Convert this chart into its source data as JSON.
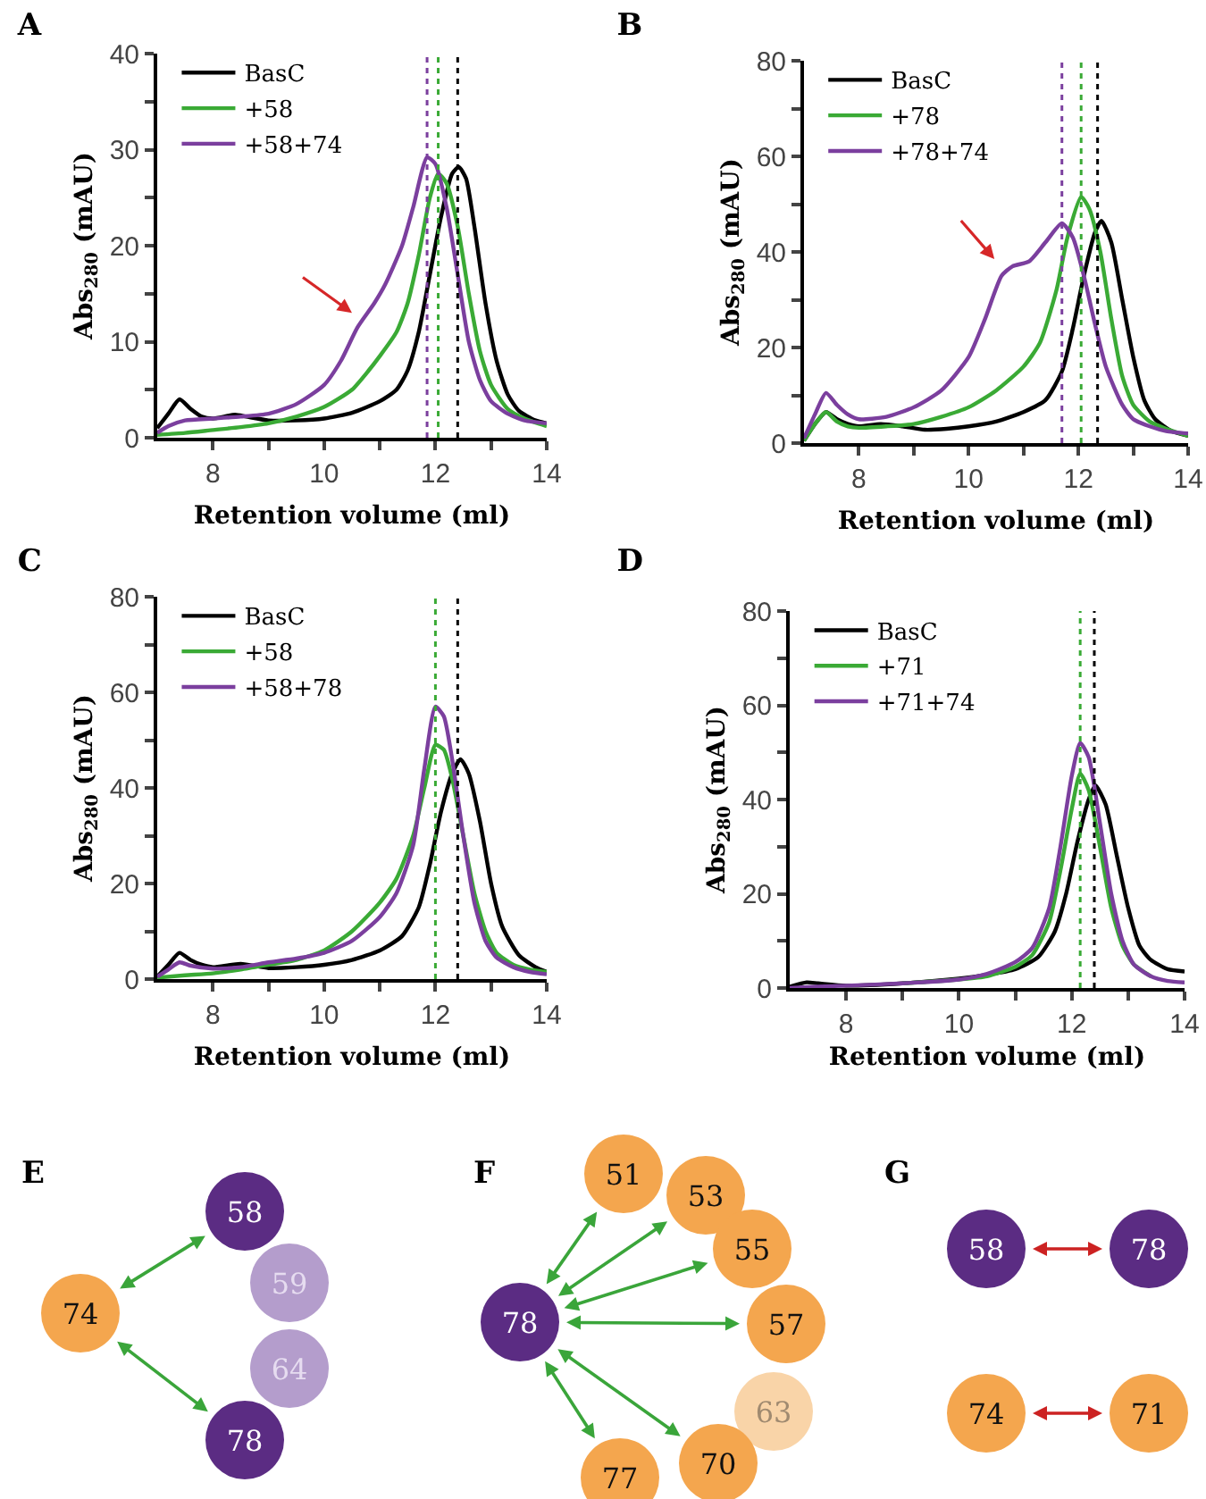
{
  "chart_data": [
    {
      "type": "line",
      "title": "A",
      "xlabel": "Retention volume (ml)",
      "ylabel": "Abs$_{280}$ (mAU)",
      "xlim": [
        7,
        14
      ],
      "xticks": [
        8,
        {
          "value": 9,
          "label": null
        },
        10,
        {
          "value": 11,
          "label": null
        },
        12,
        {
          "value": 13,
          "label": null
        },
        14
      ],
      "ylim": [
        0,
        40
      ],
      "yticks": [
        0,
        {
          "value": 5,
          "label": null
        },
        10,
        {
          "value": 15,
          "label": null
        },
        20,
        {
          "value": 25,
          "label": null
        },
        30,
        {
          "value": 35,
          "label": null
        },
        40
      ],
      "grid": false,
      "legend": "top left",
      "marker": "none",
      "line_style": "solid",
      "ref_lines": [
        {
          "axis": "x",
          "value": 11.85,
          "color": "#7b3f9e",
          "line_style": "dotted"
        },
        {
          "axis": "x",
          "value": 12.05,
          "color": "#3aaa35",
          "line_style": "dotted"
        },
        {
          "axis": "x",
          "value": 12.4,
          "color": "#000000",
          "line_style": "dotted"
        }
      ],
      "series": [
        {
          "name": "BasC",
          "color": "#000000",
          "x": [
            7.0,
            7.2,
            7.4,
            7.6,
            7.8,
            8.0,
            8.4,
            8.6,
            9.0,
            9.5,
            10,
            10.5,
            11,
            11.3,
            11.5,
            11.7,
            11.9,
            12.1,
            12.3,
            12.42,
            12.55,
            12.7,
            12.9,
            13.1,
            13.3,
            13.5,
            13.8,
            14
          ],
          "values": [
            1.0,
            2.5,
            4.0,
            3.0,
            2.2,
            2.0,
            2.4,
            2.2,
            1.8,
            1.8,
            2.0,
            2.6,
            3.8,
            5,
            7,
            11,
            17,
            23,
            27.5,
            28.2,
            27,
            22,
            14,
            8,
            4.5,
            2.8,
            1.8,
            1.5
          ]
        },
        {
          "name": "+58",
          "color": "#3aaa35",
          "x": [
            7.0,
            7.5,
            8,
            8.5,
            9,
            9.5,
            10,
            10.5,
            10.8,
            11,
            11.3,
            11.5,
            11.7,
            11.9,
            12.05,
            12.2,
            12.4,
            12.6,
            12.8,
            13,
            13.3,
            13.6,
            14
          ],
          "values": [
            0.3,
            0.5,
            0.8,
            1.1,
            1.5,
            2.2,
            3.2,
            5,
            7,
            8.5,
            11,
            14,
            19,
            25,
            27.5,
            26.5,
            22,
            15,
            9,
            5.5,
            3,
            2,
            1.2
          ]
        },
        {
          "name": "+58+74",
          "color": "#7b3f9e",
          "x": [
            7,
            7.2,
            7.5,
            8,
            8.5,
            9,
            9.5,
            10,
            10.3,
            10.6,
            10.9,
            11.1,
            11.4,
            11.6,
            11.85,
            12.0,
            12.2,
            12.4,
            12.6,
            12.8,
            13,
            13.3,
            13.6,
            14
          ],
          "values": [
            0.5,
            1.2,
            1.8,
            2.0,
            2.2,
            2.5,
            3.5,
            5.5,
            8,
            11.5,
            14,
            16,
            20,
            24,
            29.2,
            28.5,
            24,
            17,
            10,
            6,
            3.8,
            2.5,
            1.8,
            1.5
          ]
        }
      ]
    },
    {
      "type": "line",
      "title": "B",
      "xlabel": "Retention volume (ml)",
      "ylabel": "Abs$_{280}$ (mAU)",
      "xlim": [
        7,
        14
      ],
      "xticks": [
        8,
        {
          "value": 9,
          "label": null
        },
        10,
        {
          "value": 11,
          "label": null
        },
        12,
        {
          "value": 13,
          "label": null
        },
        14
      ],
      "ylim": [
        0,
        80
      ],
      "yticks": [
        0,
        {
          "value": 10,
          "label": null
        },
        20,
        {
          "value": 30,
          "label": null
        },
        40,
        {
          "value": 50,
          "label": null
        },
        60,
        {
          "value": 70,
          "label": null
        },
        80
      ],
      "grid": false,
      "legend": "top left",
      "marker": "none",
      "line_style": "solid",
      "ref_lines": [
        {
          "axis": "x",
          "value": 11.7,
          "color": "#7b3f9e",
          "line_style": "dotted"
        },
        {
          "axis": "x",
          "value": 12.05,
          "color": "#3aaa35",
          "line_style": "dotted"
        },
        {
          "axis": "x",
          "value": 12.35,
          "color": "#000000",
          "line_style": "dotted"
        }
      ],
      "series": [
        {
          "name": "BasC",
          "color": "#000000",
          "x": [
            7,
            7.2,
            7.4,
            7.6,
            7.8,
            8,
            8.4,
            8.8,
            9.2,
            9.6,
            10,
            10.5,
            11,
            11.4,
            11.7,
            11.9,
            12.1,
            12.3,
            12.42,
            12.6,
            12.8,
            13,
            13.2,
            13.4,
            13.7,
            14
          ],
          "values": [
            0.5,
            4,
            6.5,
            5,
            4,
            3.5,
            4,
            3.5,
            2.8,
            3,
            3.5,
            4.5,
            6.5,
            9,
            15,
            24,
            35,
            44,
            46.5,
            42,
            30,
            18,
            9,
            5,
            2.5,
            1.5
          ]
        },
        {
          "name": "+78",
          "color": "#3aaa35",
          "x": [
            7,
            7.2,
            7.4,
            7.6,
            7.8,
            8,
            8.5,
            9,
            9.5,
            10,
            10.5,
            11,
            11.3,
            11.6,
            11.8,
            12.05,
            12.2,
            12.4,
            12.6,
            12.8,
            13,
            13.3,
            13.6,
            14
          ],
          "values": [
            0.5,
            4,
            6.5,
            4.5,
            3.5,
            3.2,
            3.5,
            4,
            5.5,
            7.5,
            11,
            16,
            21,
            32,
            43,
            51.5,
            49,
            40,
            26,
            14,
            8,
            4.5,
            3,
            1.5
          ]
        },
        {
          "name": "+78+74",
          "color": "#7b3f9e",
          "x": [
            7,
            7.2,
            7.4,
            7.6,
            7.8,
            8,
            8.5,
            9,
            9.5,
            10,
            10.3,
            10.6,
            10.8,
            11.1,
            11.4,
            11.7,
            11.9,
            12.1,
            12.3,
            12.5,
            12.8,
            13,
            13.3,
            13.6,
            14
          ],
          "values": [
            1,
            6,
            10.5,
            8,
            6,
            5,
            5.5,
            7.5,
            11,
            18,
            26,
            35,
            37,
            38,
            42,
            46,
            43,
            35,
            25,
            16,
            8,
            5,
            3.5,
            2.5,
            2
          ]
        }
      ]
    },
    {
      "type": "line",
      "title": "C",
      "xlabel": "Retention volume (ml)",
      "ylabel": "Abs$_{280}$ (mAU)",
      "xlim": [
        7,
        14
      ],
      "xticks": [
        8,
        {
          "value": 9,
          "label": null
        },
        10,
        {
          "value": 11,
          "label": null
        },
        12,
        {
          "value": 13,
          "label": null
        },
        14
      ],
      "ylim": [
        0,
        80
      ],
      "yticks": [
        0,
        {
          "value": 10,
          "label": null
        },
        20,
        {
          "value": 30,
          "label": null
        },
        40,
        {
          "value": 50,
          "label": null
        },
        60,
        {
          "value": 70,
          "label": null
        },
        80
      ],
      "grid": false,
      "legend": "top left",
      "marker": "none",
      "line_style": "solid",
      "ref_lines": [
        {
          "axis": "x",
          "value": 12.0,
          "color": "#3aaa35",
          "line_style": "dotted"
        },
        {
          "axis": "x",
          "value": 12.4,
          "color": "#000000",
          "line_style": "dotted"
        }
      ],
      "series": [
        {
          "name": "BasC",
          "color": "#000000",
          "x": [
            7,
            7.2,
            7.4,
            7.6,
            7.8,
            8,
            8.5,
            9,
            9.5,
            10,
            10.5,
            11,
            11.4,
            11.7,
            11.9,
            12.1,
            12.3,
            12.45,
            12.6,
            12.8,
            13,
            13.2,
            13.5,
            13.8,
            14
          ],
          "values": [
            0.5,
            3,
            5.5,
            4,
            3,
            2.5,
            3.2,
            2.3,
            2.5,
            3,
            4,
            6,
            9,
            15,
            24,
            35,
            43,
            46,
            43,
            33,
            20,
            11,
            5,
            2.5,
            1.5
          ]
        },
        {
          "name": "+58",
          "color": "#3aaa35",
          "x": [
            7,
            7.5,
            8,
            8.5,
            9,
            9.5,
            10,
            10.5,
            11,
            11.3,
            11.6,
            11.8,
            12.0,
            12.15,
            12.3,
            12.5,
            12.7,
            12.9,
            13.1,
            13.4,
            13.7,
            14
          ],
          "values": [
            0.3,
            0.8,
            1.2,
            2,
            3,
            4,
            6,
            10,
            16,
            21,
            30,
            40,
            49,
            48,
            42,
            30,
            18,
            10,
            5.5,
            3,
            2,
            1.5
          ]
        },
        {
          "name": "+58+78",
          "color": "#7b3f9e",
          "x": [
            7,
            7.2,
            7.4,
            7.6,
            8,
            8.5,
            9,
            9.5,
            10,
            10.5,
            11,
            11.3,
            11.6,
            11.8,
            12.0,
            12.15,
            12.3,
            12.5,
            12.7,
            12.9,
            13.1,
            13.4,
            13.7,
            14
          ],
          "values": [
            0.5,
            2,
            3.5,
            2.8,
            2.2,
            2.5,
            3.5,
            4.3,
            5.5,
            8,
            13,
            18,
            28,
            44,
            57,
            55,
            46,
            30,
            16,
            8,
            4.5,
            2.5,
            1.5,
            1
          ]
        }
      ]
    },
    {
      "type": "line",
      "title": "D",
      "xlabel": "Retention volume (ml)",
      "ylabel": "Abs$_{280}$ (mAU)",
      "xlim": [
        7,
        14
      ],
      "xticks": [
        8,
        {
          "value": 9,
          "label": null
        },
        10,
        {
          "value": 11,
          "label": null
        },
        12,
        {
          "value": 13,
          "label": null
        },
        14
      ],
      "ylim": [
        0,
        80
      ],
      "yticks": [
        0,
        {
          "value": 10,
          "label": null
        },
        20,
        {
          "value": 30,
          "label": null
        },
        40,
        {
          "value": 50,
          "label": null
        },
        60,
        {
          "value": 70,
          "label": null
        },
        80
      ],
      "grid": false,
      "legend": "top left",
      "marker": "none",
      "line_style": "solid",
      "ref_lines": [
        {
          "axis": "x",
          "value": 12.15,
          "color": "#3aaa35",
          "line_style": "dotted"
        },
        {
          "axis": "x",
          "value": 12.4,
          "color": "#000000",
          "line_style": "dotted"
        }
      ],
      "series": [
        {
          "name": "BasC",
          "color": "#000000",
          "x": [
            7,
            7.3,
            7.5,
            8,
            9,
            10,
            10.5,
            11,
            11.4,
            11.7,
            11.9,
            12.1,
            12.3,
            12.42,
            12.6,
            12.8,
            13,
            13.2,
            13.4,
            13.7,
            14
          ],
          "values": [
            0.3,
            1.2,
            1.0,
            0.5,
            1,
            2,
            2.8,
            4,
            6.5,
            12,
            20,
            31,
            40,
            43,
            39,
            28,
            17,
            9,
            6,
            4,
            3.5
          ]
        },
        {
          "name": "+71",
          "color": "#3aaa35",
          "x": [
            9,
            10,
            10.5,
            11,
            11.3,
            11.6,
            11.8,
            12.0,
            12.15,
            12.3,
            12.5,
            12.7,
            12.9,
            13.1,
            13.4
          ],
          "values": [
            1,
            1.8,
            2.5,
            4.5,
            7,
            14,
            25,
            38,
            45.5,
            42,
            30,
            17,
            9,
            5,
            2.5
          ]
        },
        {
          "name": "+71+74",
          "color": "#7b3f9e",
          "x": [
            7,
            7.5,
            8,
            9,
            10,
            10.5,
            11,
            11.3,
            11.6,
            11.8,
            12.0,
            12.15,
            12.3,
            12.5,
            12.7,
            12.9,
            13.1,
            13.4,
            13.7,
            14
          ],
          "values": [
            0,
            0.3,
            0.5,
            1,
            1.8,
            3,
            5.5,
            8.5,
            17,
            30,
            45,
            52,
            49,
            35,
            20,
            10,
            5,
            2.5,
            1.5,
            1.2
          ]
        }
      ]
    },
    {
      "type": "other",
      "title": "E",
      "annotations": [
        "74",
        "58",
        "59",
        "64",
        "78"
      ]
    },
    {
      "type": "other",
      "title": "F",
      "annotations": [
        "78",
        "51",
        "53",
        "55",
        "57",
        "63",
        "70",
        "77"
      ]
    },
    {
      "type": "other",
      "title": "G",
      "annotations": [
        "58",
        "78",
        "74",
        "71"
      ]
    }
  ]
}
